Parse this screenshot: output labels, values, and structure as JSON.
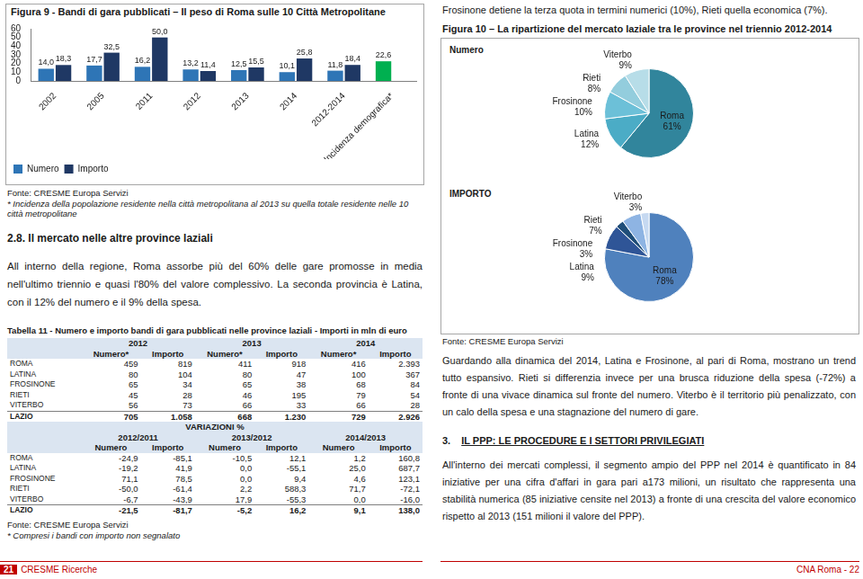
{
  "chart_data": [
    {
      "type": "bar",
      "title": "Figura 9 - Bandi di gara pubblicati – Il peso di Roma sulle 10 Città Metropolitane",
      "categories": [
        "2002",
        "2005",
        "2011",
        "2012",
        "2013",
        "2014",
        "2012-2014",
        "Incidenza demografica*"
      ],
      "series": [
        {
          "name": "Numero",
          "color": "#2e75b6",
          "colors": [
            "#2e75b6",
            "#2e75b6",
            "#2e75b6",
            "#2e75b6",
            "#2e75b6",
            "#2e75b6",
            "#2e75b6",
            "#00b050"
          ],
          "values": [
            14.0,
            17.7,
            16.2,
            13.2,
            12.5,
            10.1,
            11.8,
            22.6
          ],
          "value_labels": [
            "14,0",
            "17,7",
            "16,2",
            "13,2",
            "12,5",
            "10,1",
            "11,8",
            "22,6"
          ]
        },
        {
          "name": "Importo",
          "color": "#1f3864",
          "values": [
            18.3,
            32.5,
            50.0,
            11.4,
            15.5,
            25.8,
            18.4,
            null
          ],
          "value_labels": [
            "18,3",
            "32,5",
            "50,0",
            "11,4",
            "15,5",
            "25,8",
            "18,4",
            null
          ]
        }
      ],
      "ylim": [
        0,
        60
      ],
      "yticks": [
        0,
        10,
        20,
        30,
        40,
        50,
        60
      ],
      "grid": false,
      "legend": "bottom",
      "data_labels": true
    },
    {
      "type": "pie",
      "title": "Numero",
      "categories": [
        "Roma",
        "Latina",
        "Frosinone",
        "Rieti",
        "Viterbo"
      ],
      "values": [
        61,
        12,
        10,
        8,
        9
      ],
      "value_labels": [
        "61%",
        "12%",
        "10%",
        "8%",
        "9%"
      ],
      "colors": [
        "#31859c",
        "#4bacc6",
        "#6cc0d8",
        "#93cddd",
        "#b7dde8"
      ],
      "data_labels": true
    },
    {
      "type": "pie",
      "title": "IMPORTO",
      "categories": [
        "Roma",
        "Latina",
        "Frosinone",
        "Rieti",
        "Viterbo"
      ],
      "values": [
        78,
        9,
        3,
        7,
        3
      ],
      "value_labels": [
        "78%",
        "9%",
        "3%",
        "7%",
        "3%"
      ],
      "colors": [
        "#4f81bd",
        "#2f5597",
        "#1f4e79",
        "#8eb4e3",
        "#c6d9f1"
      ],
      "data_labels": true
    }
  ],
  "document": {
    "intro_right": "Frosinone detiene la terza quota in termini numerici (10%), Rieti quella economica (7%).",
    "figure9_source": "Fonte: CRESME Europa Servizi",
    "figure9_note": "* Incidenza della popolazione residente nella città metropolitana al 2013 su quella totale residente nelle 10 città metropolitane",
    "section_heading": "2.8. Il mercato nelle altre province laziali",
    "section_text": "All interno della regione, Roma assorbe più del 60% delle gare promosse in media nell'ultimo triennio e quasi l'80% del valore complessivo. La seconda provincia è Latina, con il 12% del numero e il 9% della spesa.",
    "table": {
      "title": "Tabella 11 - Numero e importo bandi di gara pubblicati nelle province laziali - Importi in mln di euro",
      "blocks": [
        {
          "section": null,
          "periods": [
            "2012",
            "2013",
            "2014"
          ],
          "columns": [
            "Numero*",
            "Importo",
            "Numero*",
            "Importo",
            "Numero*",
            "Importo"
          ],
          "rows": [
            [
              "ROMA",
              "459",
              "819",
              "411",
              "918",
              "416",
              "2.393"
            ],
            [
              "LATINA",
              "80",
              "104",
              "80",
              "47",
              "100",
              "367"
            ],
            [
              "FROSINONE",
              "65",
              "34",
              "65",
              "38",
              "68",
              "84"
            ],
            [
              "RIETI",
              "45",
              "28",
              "46",
              "195",
              "79",
              "54"
            ],
            [
              "VITERBO",
              "56",
              "73",
              "66",
              "33",
              "66",
              "28"
            ],
            [
              "LAZIO",
              "705",
              "1.058",
              "668",
              "1.230",
              "729",
              "2.926"
            ]
          ]
        },
        {
          "section": "VARIAZIONI %",
          "periods": [
            "2012/2011",
            "2013/2012",
            "2014/2013"
          ],
          "columns": [
            "Numero",
            "Importo",
            "Numero",
            "Importo",
            "Numero",
            "Importo"
          ],
          "rows": [
            [
              "ROMA",
              "-24,9",
              "-85,1",
              "-10,5",
              "12,1",
              "1,2",
              "160,8"
            ],
            [
              "LATINA",
              "-19,2",
              "41,9",
              "0,0",
              "-55,1",
              "25,0",
              "687,7"
            ],
            [
              "FROSINONE",
              "71,1",
              "78,5",
              "0,0",
              "9,4",
              "4,6",
              "123,1"
            ],
            [
              "RIETI",
              "-50,0",
              "-61,4",
              "2,2",
              "588,3",
              "71,7",
              "-72,1"
            ],
            [
              "VITERBO",
              "-6,7",
              "-43,9",
              "17,9",
              "-55,3",
              "0,0",
              "-16,0"
            ],
            [
              "LAZIO",
              "-21,5",
              "-81,7",
              "-5,2",
              "16,2",
              "9,1",
              "138,0"
            ]
          ]
        }
      ],
      "source": "Fonte: CRESME Europa Servizi",
      "note": "* Compresi i bandi con importo non segnalato"
    },
    "figure10_title": "Figura 10 – La ripartizione del mercato laziale tra le province nel triennio 2012-2014",
    "figure10_source": "Fonte: CRESME Europa Servizi",
    "text_2014": "Guardando alla dinamica del 2014, Latina e Frosinone, al pari di Roma, mostrano un trend tutto espansivo. Rieti si differenzia invece per una brusca riduzione della spesa (-72%) a fronte di una vivace dinamica sul fronte del numero. Viterbo è il territorio più penalizzato, con un calo della spesa e una stagnazione del numero di gare.",
    "chapter_number": "3.",
    "chapter_title": "IL PPP: LE PROCEDURE E I SETTORI PRIVILEGIATI",
    "chapter_text": "All'interno dei mercati complessi, il segmento ampio del PPP nel 2014 è quantificato in 84 iniziative per una cifra d'affari in gara pari a173 milioni, un risultato che rappresenta una stabilità numerica (85 iniziative censite nel 2013) a fronte di una crescita del valore economico rispetto al 2013 (151 milioni il valore del PPP).",
    "footer_left_page": "21",
    "footer_left_text": "CRESME Ricerche",
    "footer_right": "CNA Roma - 22"
  }
}
